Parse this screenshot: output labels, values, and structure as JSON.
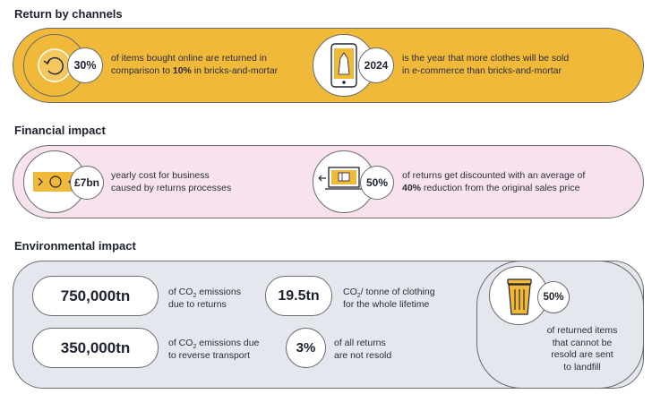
{
  "colors": {
    "yellow": "#f0b93a",
    "pink": "#f7e2ee",
    "grey": "#e4e7ee",
    "dark": "#1e2130"
  },
  "channels": {
    "title": "Return by channels",
    "stat1": {
      "value": "30%",
      "line1": "of items bought online are returned in",
      "line2_pre": "comparison to ",
      "line2_bold": "10%",
      "line2_post": " in bricks-and-mortar",
      "icon": "return-cycle-icon"
    },
    "stat2": {
      "value": "2024",
      "line1": "is the year that more clothes will be sold",
      "line2": "in e-commerce than bricks-and-mortar",
      "icon": "smartphone-dress-icon"
    }
  },
  "financial": {
    "title": "Financial impact",
    "stat1": {
      "value": "£7bn",
      "line1": "yearly cost for business",
      "line2": "caused by returns processes",
      "icon": "banknote-icon"
    },
    "stat2": {
      "value": "50%",
      "line1": "of returns get discounted with an average of",
      "line2_bold": "40%",
      "line2_post": " reduction from the original sales price",
      "icon": "laptop-discount-icon"
    }
  },
  "environmental": {
    "title": "Environmental impact",
    "stat1": {
      "value": "750,000tn",
      "pre": "of CO",
      "sub": "2",
      "post": " emissions",
      "line2": "due to returns"
    },
    "stat2": {
      "value": "350,000tn",
      "pre": "of CO",
      "sub": "2",
      "post": " emissions due",
      "line2": "to reverse transport"
    },
    "stat3": {
      "value": "19.5tn",
      "pre": "CO",
      "sub": "2",
      "post": "/ tonne of clothing",
      "line2": "for the whole lifetime"
    },
    "stat4": {
      "value": "3%",
      "line1": "of all returns",
      "line2": "are not resold"
    },
    "stat5": {
      "value": "50%",
      "line1": "of returned items",
      "line2": "that cannot be",
      "line3": "resold are sent",
      "line4": "to landfill",
      "icon": "trash-bin-icon"
    }
  }
}
